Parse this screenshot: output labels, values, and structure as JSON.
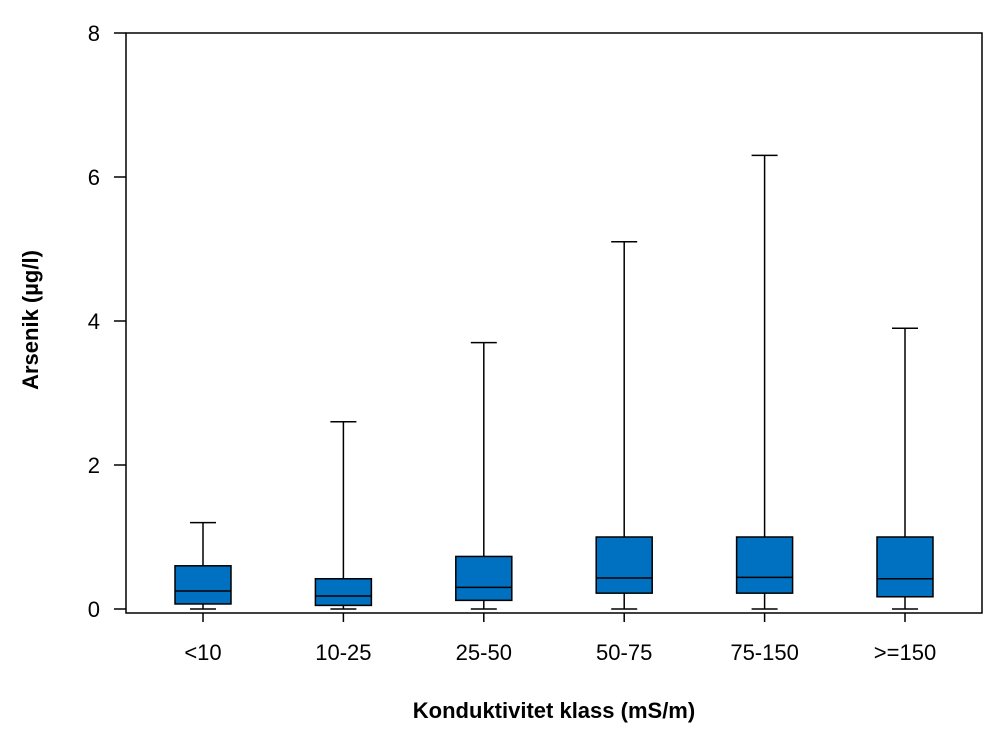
{
  "chart_data": {
    "type": "box",
    "xlabel": "Konduktivitet klass (mS/m)",
    "ylabel": "Arsenik (µg/l)",
    "ylim": [
      0,
      8
    ],
    "yticks": [
      0,
      2,
      4,
      6,
      8
    ],
    "ytick_labels": [
      "0",
      "2",
      "4",
      "6",
      "8"
    ],
    "grid": false,
    "legend": "none",
    "box_color": "#0070c0",
    "categories": [
      "<10",
      "10-25",
      "25-50",
      "50-75",
      "75-150",
      ">=150"
    ],
    "boxes": [
      {
        "category": "<10",
        "min": 0.0,
        "q1": 0.07,
        "median": 0.25,
        "q3": 0.6,
        "max": 1.2
      },
      {
        "category": "10-25",
        "min": 0.0,
        "q1": 0.05,
        "median": 0.18,
        "q3": 0.42,
        "max": 2.6
      },
      {
        "category": "25-50",
        "min": 0.0,
        "q1": 0.12,
        "median": 0.3,
        "q3": 0.73,
        "max": 3.7
      },
      {
        "category": "50-75",
        "min": 0.0,
        "q1": 0.22,
        "median": 0.43,
        "q3": 1.0,
        "max": 5.1
      },
      {
        "category": "75-150",
        "min": 0.0,
        "q1": 0.22,
        "median": 0.44,
        "q3": 1.0,
        "max": 6.3
      },
      {
        "category": ">=150",
        "min": 0.0,
        "q1": 0.17,
        "median": 0.42,
        "q3": 1.0,
        "max": 3.9
      }
    ]
  }
}
